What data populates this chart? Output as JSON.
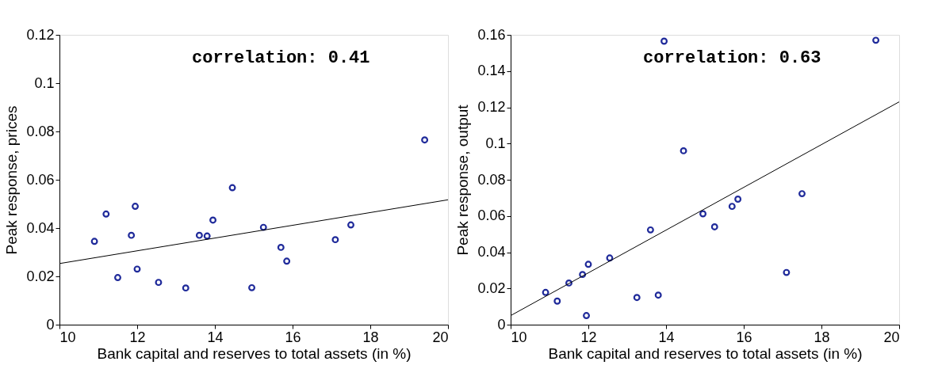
{
  "chart_data": [
    {
      "type": "scatter",
      "xlabel": "Bank capital and reserves to total assets (in %)",
      "ylabel": "Peak response, prices",
      "annotations": [
        "correlation: 0.41"
      ],
      "xlim": [
        10,
        20
      ],
      "xticks": [
        10,
        12,
        14,
        16,
        18,
        20
      ],
      "ylim": [
        0,
        0.12
      ],
      "yticks": [
        0,
        0.02,
        0.04,
        0.06,
        0.08,
        0.1,
        0.12
      ],
      "grid": false,
      "series": [
        {
          "marker": "circle",
          "color": "#1f2a9a",
          "x": [
            10.9,
            11.2,
            11.5,
            11.85,
            11.95,
            12.0,
            12.55,
            13.25,
            13.6,
            13.8,
            13.95,
            14.45,
            14.95,
            15.25,
            15.7,
            15.85,
            17.1,
            17.5,
            19.4
          ],
          "values": [
            0.0345,
            0.0458,
            0.0195,
            0.037,
            0.049,
            0.023,
            0.0175,
            0.0152,
            0.037,
            0.0367,
            0.0433,
            0.0567,
            0.0153,
            0.0403,
            0.032,
            0.0263,
            0.0352,
            0.0413,
            0.0765
          ]
        },
        {
          "type": "line",
          "color": "#000000",
          "x": [
            10,
            20
          ],
          "values": [
            0.0253,
            0.0517
          ]
        }
      ]
    },
    {
      "type": "scatter",
      "xlabel": "Bank capital and reserves to total assets (in %)",
      "ylabel": "Peak response, output",
      "annotations": [
        "correlation: 0.63"
      ],
      "xlim": [
        10,
        20
      ],
      "xticks": [
        10,
        12,
        14,
        16,
        18,
        20
      ],
      "ylim": [
        0,
        0.16
      ],
      "yticks": [
        0,
        0.02,
        0.04,
        0.06,
        0.08,
        0.1,
        0.12,
        0.14,
        0.16
      ],
      "grid": false,
      "series": [
        {
          "marker": "circle",
          "color": "#1f2a9a",
          "x": [
            10.9,
            11.2,
            11.5,
            11.85,
            11.95,
            12.0,
            12.55,
            13.25,
            13.6,
            13.8,
            13.95,
            14.45,
            14.95,
            15.25,
            15.7,
            15.85,
            17.1,
            17.5,
            19.4
          ],
          "values": [
            0.0178,
            0.013,
            0.023,
            0.0277,
            0.005,
            0.0333,
            0.0368,
            0.015,
            0.0523,
            0.0163,
            0.1565,
            0.096,
            0.0612,
            0.054,
            0.0653,
            0.0693,
            0.0288,
            0.0723,
            0.157
          ]
        },
        {
          "type": "line",
          "color": "#000000",
          "x": [
            10,
            20
          ],
          "values": [
            0.005,
            0.123
          ]
        }
      ]
    }
  ]
}
